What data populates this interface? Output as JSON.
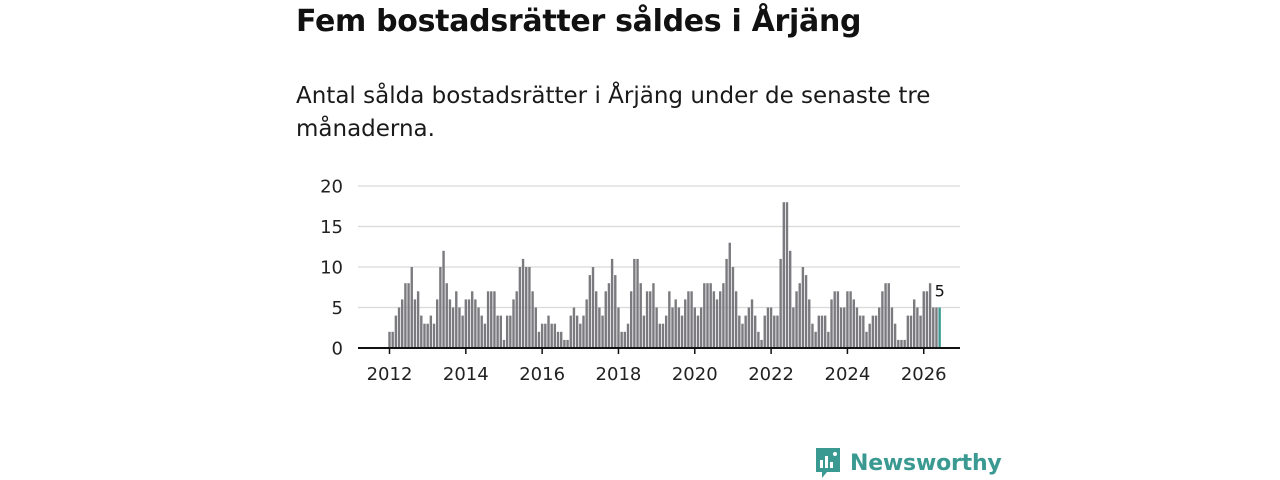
{
  "header": {
    "title": "Fem bostadsrätter såldes i Årjäng",
    "subtitle": "Antal sålda bostadsrätter i Årjäng under de senaste tre månaderna."
  },
  "brand": {
    "name": "Newsworthy"
  },
  "colors": {
    "bar": "#7b7b7f",
    "highlight": "#3a9a92",
    "grid": "#d9d9d9",
    "axis": "#111111"
  },
  "chart_data": {
    "type": "bar",
    "title": "",
    "xlabel": "",
    "ylabel": "",
    "ylim": [
      0,
      20
    ],
    "yticks": [
      "0",
      "5",
      "10",
      "15",
      "20"
    ],
    "xticks": [
      "2012",
      "2014",
      "2016",
      "2018",
      "2020",
      "2022",
      "2024",
      "2026"
    ],
    "start_month": "2012-01",
    "highlight_label": "5",
    "values": [
      2,
      2,
      4,
      5,
      6,
      8,
      8,
      10,
      6,
      7,
      4,
      3,
      3,
      4,
      3,
      6,
      10,
      12,
      8,
      6,
      5,
      7,
      5,
      4,
      6,
      6,
      7,
      6,
      5,
      4,
      3,
      7,
      7,
      7,
      4,
      4,
      1,
      4,
      4,
      6,
      7,
      10,
      11,
      10,
      10,
      7,
      5,
      2,
      3,
      3,
      4,
      3,
      3,
      2,
      2,
      1,
      1,
      4,
      5,
      4,
      3,
      4,
      6,
      9,
      10,
      7,
      5,
      4,
      7,
      8,
      11,
      9,
      5,
      2,
      2,
      3,
      7,
      11,
      11,
      8,
      4,
      7,
      7,
      8,
      5,
      3,
      3,
      4,
      7,
      5,
      6,
      5,
      4,
      6,
      7,
      7,
      5,
      4,
      5,
      8,
      8,
      8,
      7,
      6,
      7,
      8,
      11,
      13,
      10,
      7,
      4,
      3,
      4,
      5,
      6,
      4,
      2,
      1,
      4,
      5,
      5,
      4,
      4,
      11,
      18,
      18,
      12,
      5,
      7,
      8,
      10,
      9,
      6,
      3,
      2,
      4,
      4,
      4,
      2,
      6,
      7,
      7,
      5,
      5,
      7,
      7,
      6,
      5,
      4,
      4,
      2,
      3,
      4,
      4,
      5,
      7,
      8,
      8,
      5,
      3,
      1,
      1,
      1,
      4,
      4,
      6,
      5,
      4,
      7,
      7,
      8,
      5,
      5,
      5
    ]
  }
}
